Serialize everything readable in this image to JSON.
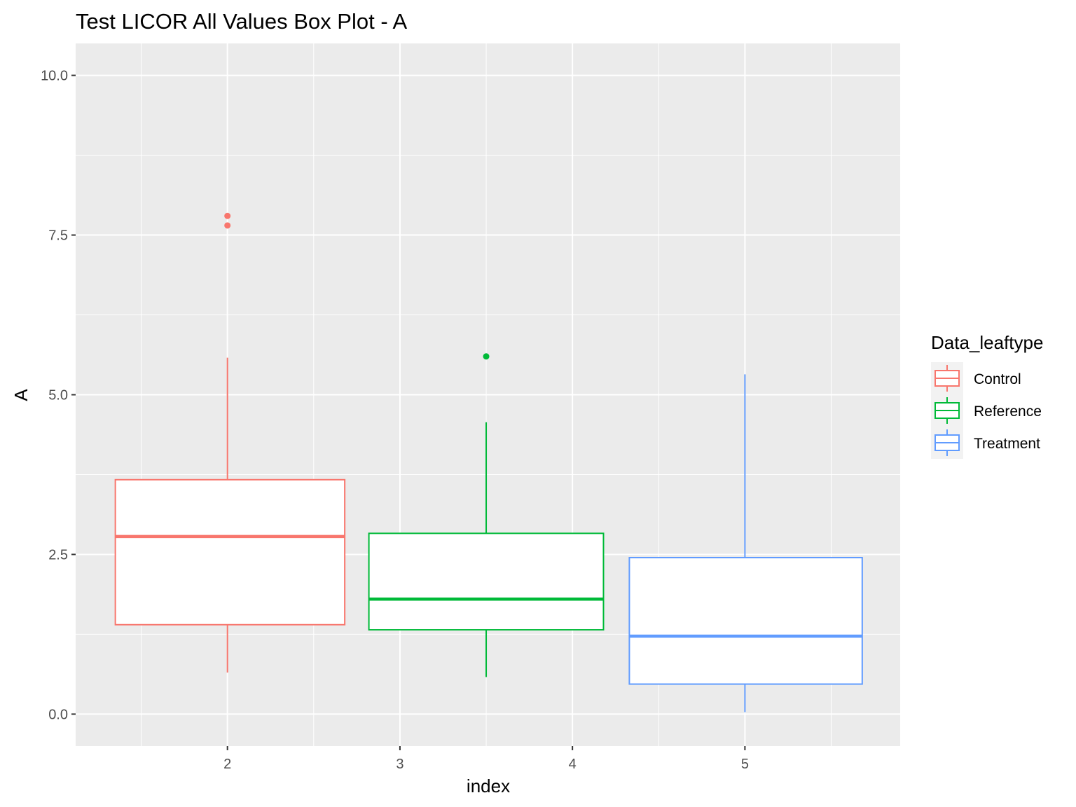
{
  "chart_data": {
    "type": "box",
    "title": "Test LICOR All Values Box Plot - A",
    "xlabel": "index",
    "ylabel": "A",
    "xlim": [
      1.12,
      5.9
    ],
    "ylim": [
      -0.5,
      10.5
    ],
    "x_ticks": [
      "2",
      "3",
      "4",
      "5"
    ],
    "y_ticks": [
      "0.0",
      "2.5",
      "5.0",
      "7.5",
      "10.0"
    ],
    "y_tick_values": [
      0,
      2.5,
      5,
      7.5,
      10
    ],
    "grid": true,
    "legend": {
      "title": "Data_leaftype",
      "position": "right"
    },
    "series": [
      {
        "name": "Control",
        "color": "#F8766D",
        "x_center": 2.0,
        "x_left": 1.35,
        "x_right": 2.68,
        "whisker_low": 0.65,
        "q1": 1.4,
        "median": 2.78,
        "q3": 3.67,
        "whisker_high": 5.58,
        "outliers": [
          7.65,
          7.8
        ]
      },
      {
        "name": "Reference",
        "color": "#00BA38",
        "x_center": 3.5,
        "x_left": 2.82,
        "x_right": 4.18,
        "whisker_low": 0.58,
        "q1": 1.32,
        "median": 1.8,
        "q3": 2.83,
        "whisker_high": 4.57,
        "outliers": [
          5.6
        ]
      },
      {
        "name": "Treatment",
        "color": "#619CFF",
        "x_center": 5.0,
        "x_left": 4.33,
        "x_right": 5.68,
        "whisker_low": 0.03,
        "q1": 0.47,
        "median": 1.22,
        "q3": 2.45,
        "whisker_high": 5.32,
        "outliers": []
      }
    ]
  }
}
